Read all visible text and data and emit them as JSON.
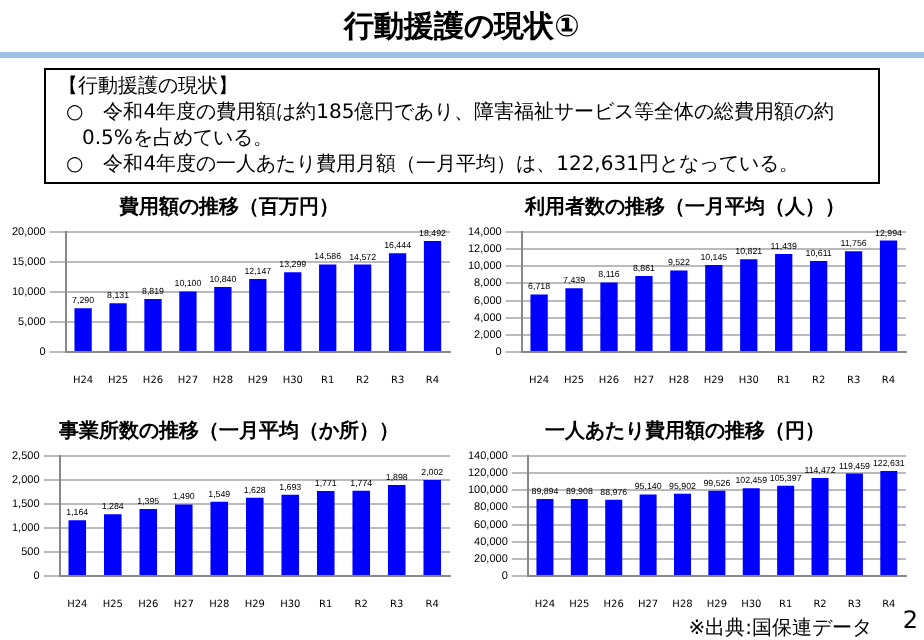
{
  "chart_data": [
    {
      "type": "other",
      "title": "行動援護の現状①",
      "annotations": [
        "【行動援護の現状】",
        "○　令和4年度の費用額は約185億円であり、障害福祉サービス等全体の総費用額の約0.5%を占めている。",
        "○　令和4年度の一人あたり費用月額（一月平均）は、122,631円となっている。",
        "2"
      ]
    },
    {
      "type": "bar",
      "title": "費用額の推移（百万円）",
      "categories": [
        "H24",
        "H25",
        "H26",
        "H27",
        "H28",
        "H29",
        "H30",
        "R1",
        "R2",
        "R3",
        "R4"
      ],
      "values": [
        7290,
        8131,
        8819,
        10100,
        10840,
        12147,
        13299,
        14586,
        14572,
        16444,
        18492
      ],
      "value_labels": [
        "7,290",
        "8,131",
        "8,819",
        "10,100",
        "10,840",
        "12,147",
        "13,299",
        "14,586",
        "14,572",
        "16,444",
        "18,492"
      ],
      "color": "#0000ff",
      "ylim": [
        0,
        20000
      ],
      "yticks": [
        {
          "value": 0,
          "label": "0"
        },
        {
          "value": 5000,
          "label": "5,000"
        },
        {
          "value": 10000,
          "label": "10,000"
        },
        {
          "value": 15000,
          "label": "15,000"
        },
        {
          "value": 20000,
          "label": "20,000"
        }
      ],
      "grid": "y"
    },
    {
      "type": "bar",
      "title": "利用者数の推移（一月平均（人））",
      "categories": [
        "H24",
        "H25",
        "H26",
        "H27",
        "H28",
        "H29",
        "H30",
        "R1",
        "R2",
        "R3",
        "R4"
      ],
      "values": [
        6718,
        7439,
        8116,
        8861,
        9522,
        10145,
        10821,
        11439,
        10611,
        11756,
        12994
      ],
      "value_labels": [
        "6,718",
        "7,439",
        "8,116",
        "8,861",
        "9,522",
        "10,145",
        "10,821",
        "11,439",
        "10,611",
        "11,756",
        "12,994"
      ],
      "color": "#0000ff",
      "ylim": [
        0,
        14000
      ],
      "yticks": [
        {
          "value": 0,
          "label": "0"
        },
        {
          "value": 2000,
          "label": "2,000"
        },
        {
          "value": 4000,
          "label": "4,000"
        },
        {
          "value": 6000,
          "label": "6,000"
        },
        {
          "value": 8000,
          "label": "8,000"
        },
        {
          "value": 10000,
          "label": "10,000"
        },
        {
          "value": 12000,
          "label": "12,000"
        },
        {
          "value": 14000,
          "label": "14,000"
        }
      ],
      "grid": "y"
    },
    {
      "type": "bar",
      "title": "事業所数の推移（一月平均（か所））",
      "categories": [
        "H24",
        "H25",
        "H26",
        "H27",
        "H28",
        "H29",
        "H30",
        "R1",
        "R2",
        "R3",
        "R4"
      ],
      "values": [
        1164,
        1284,
        1395,
        1490,
        1549,
        1628,
        1693,
        1771,
        1774,
        1898,
        2002
      ],
      "value_labels": [
        "1,164",
        "1,284",
        "1,395",
        "1,490",
        "1,549",
        "1,628",
        "1,693",
        "1,771",
        "1,774",
        "1,898",
        "2,002"
      ],
      "color": "#0000ff",
      "ylim": [
        0,
        2500
      ],
      "yticks": [
        {
          "value": 0,
          "label": "0"
        },
        {
          "value": 500,
          "label": "500"
        },
        {
          "value": 1000,
          "label": "1,000"
        },
        {
          "value": 1500,
          "label": "1,500"
        },
        {
          "value": 2000,
          "label": "2,000"
        },
        {
          "value": 2500,
          "label": "2,500"
        }
      ],
      "grid": "y"
    },
    {
      "type": "bar",
      "title": "一人あたり費用額の推移（円）",
      "categories": [
        "H24",
        "H25",
        "H26",
        "H27",
        "H28",
        "H29",
        "H30",
        "R1",
        "R2",
        "R3",
        "R4"
      ],
      "values": [
        89894,
        89908,
        88976,
        95140,
        95902,
        99526,
        102459,
        105397,
        114472,
        119459,
        122631
      ],
      "value_labels": [
        "89,894",
        "89,908",
        "88,976",
        "95,140",
        "95,902",
        "99,526",
        "102,459",
        "105,397",
        "114,472",
        "119,459",
        "122,631"
      ],
      "color": "#0000ff",
      "ylim": [
        0,
        140000
      ],
      "yticks": [
        {
          "value": 0,
          "label": "0"
        },
        {
          "value": 20000,
          "label": "20,000"
        },
        {
          "value": 40000,
          "label": "40,000"
        },
        {
          "value": 60000,
          "label": "60,000"
        },
        {
          "value": 80000,
          "label": "80,000"
        },
        {
          "value": 100000,
          "label": "100,000"
        },
        {
          "value": 120000,
          "label": "120,000"
        },
        {
          "value": 140000,
          "label": "140,000"
        }
      ],
      "grid": "y",
      "annotations": [
        "※出典:国保連データ"
      ]
    }
  ]
}
